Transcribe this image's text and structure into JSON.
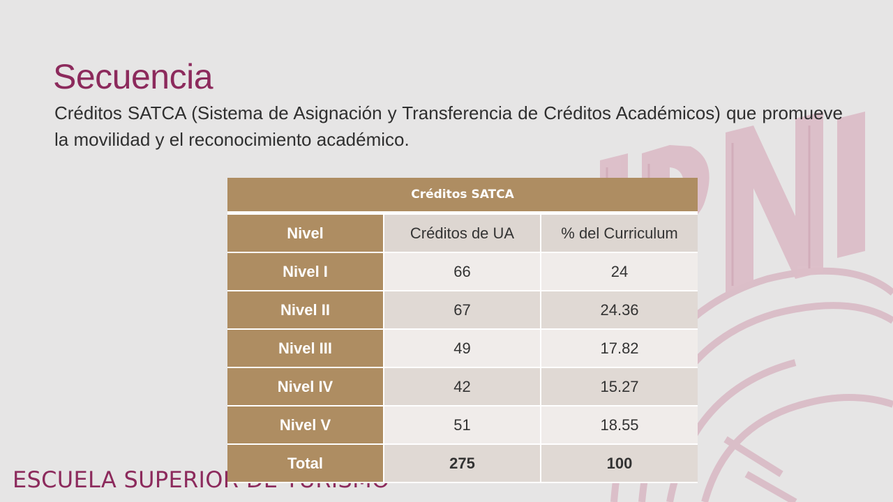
{
  "slide": {
    "title": "Secuencia",
    "body": "Créditos SATCA (Sistema de Asignación y Transferencia de Créditos Académicos) que promueve la movilidad y el reconocimiento académico.",
    "footer": "ESCUELA SUPERIOR DE TURISMO",
    "watermark": "IPN"
  },
  "table": {
    "caption": "Créditos SATCA",
    "columns": [
      "Nivel",
      "Créditos de UA",
      "% del Curriculum"
    ],
    "rows": [
      {
        "nivel": "Nivel I",
        "creditos": "66",
        "porcentaje": "24"
      },
      {
        "nivel": "Nivel II",
        "creditos": "67",
        "porcentaje": "24.36"
      },
      {
        "nivel": "Nivel III",
        "creditos": "49",
        "porcentaje": "17.82"
      },
      {
        "nivel": "Nivel IV",
        "creditos": "42",
        "porcentaje": "15.27"
      },
      {
        "nivel": "Nivel V",
        "creditos": "51",
        "porcentaje": "18.55"
      }
    ],
    "total": {
      "nivel": "Total",
      "creditos": "275",
      "porcentaje": "100"
    }
  },
  "colors": {
    "title": "#8c2a5c",
    "header_brown": "#ae8d62",
    "watermark": "#d8b8c3",
    "background": "#e6e5e5"
  }
}
